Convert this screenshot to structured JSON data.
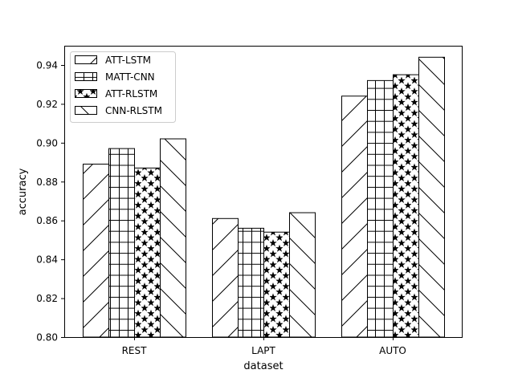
{
  "chart_data": {
    "type": "bar",
    "title": "",
    "xlabel": "dataset",
    "ylabel": "accuracy",
    "categories": [
      "REST",
      "LAPT",
      "AUTO"
    ],
    "ylim": [
      0.8,
      0.95
    ],
    "yticks": [
      "0.80",
      "0.82",
      "0.84",
      "0.86",
      "0.88",
      "0.90",
      "0.92",
      "0.94"
    ],
    "grid": false,
    "legend_position": "top-left",
    "series": [
      {
        "name": "ATT-LSTM",
        "hatch": "forward-diagonal",
        "values": [
          0.889,
          0.861,
          0.924
        ]
      },
      {
        "name": "MATT-CNN",
        "hatch": "grid",
        "values": [
          0.897,
          0.856,
          0.932
        ]
      },
      {
        "name": "ATT-RLSTM",
        "hatch": "stars",
        "values": [
          0.887,
          0.854,
          0.935
        ]
      },
      {
        "name": "CNN-RLSTM",
        "hatch": "back-diagonal",
        "values": [
          0.902,
          0.864,
          0.944
        ]
      }
    ],
    "colors": {
      "bar_fill": "#ffffff",
      "edge": "#000000"
    }
  }
}
